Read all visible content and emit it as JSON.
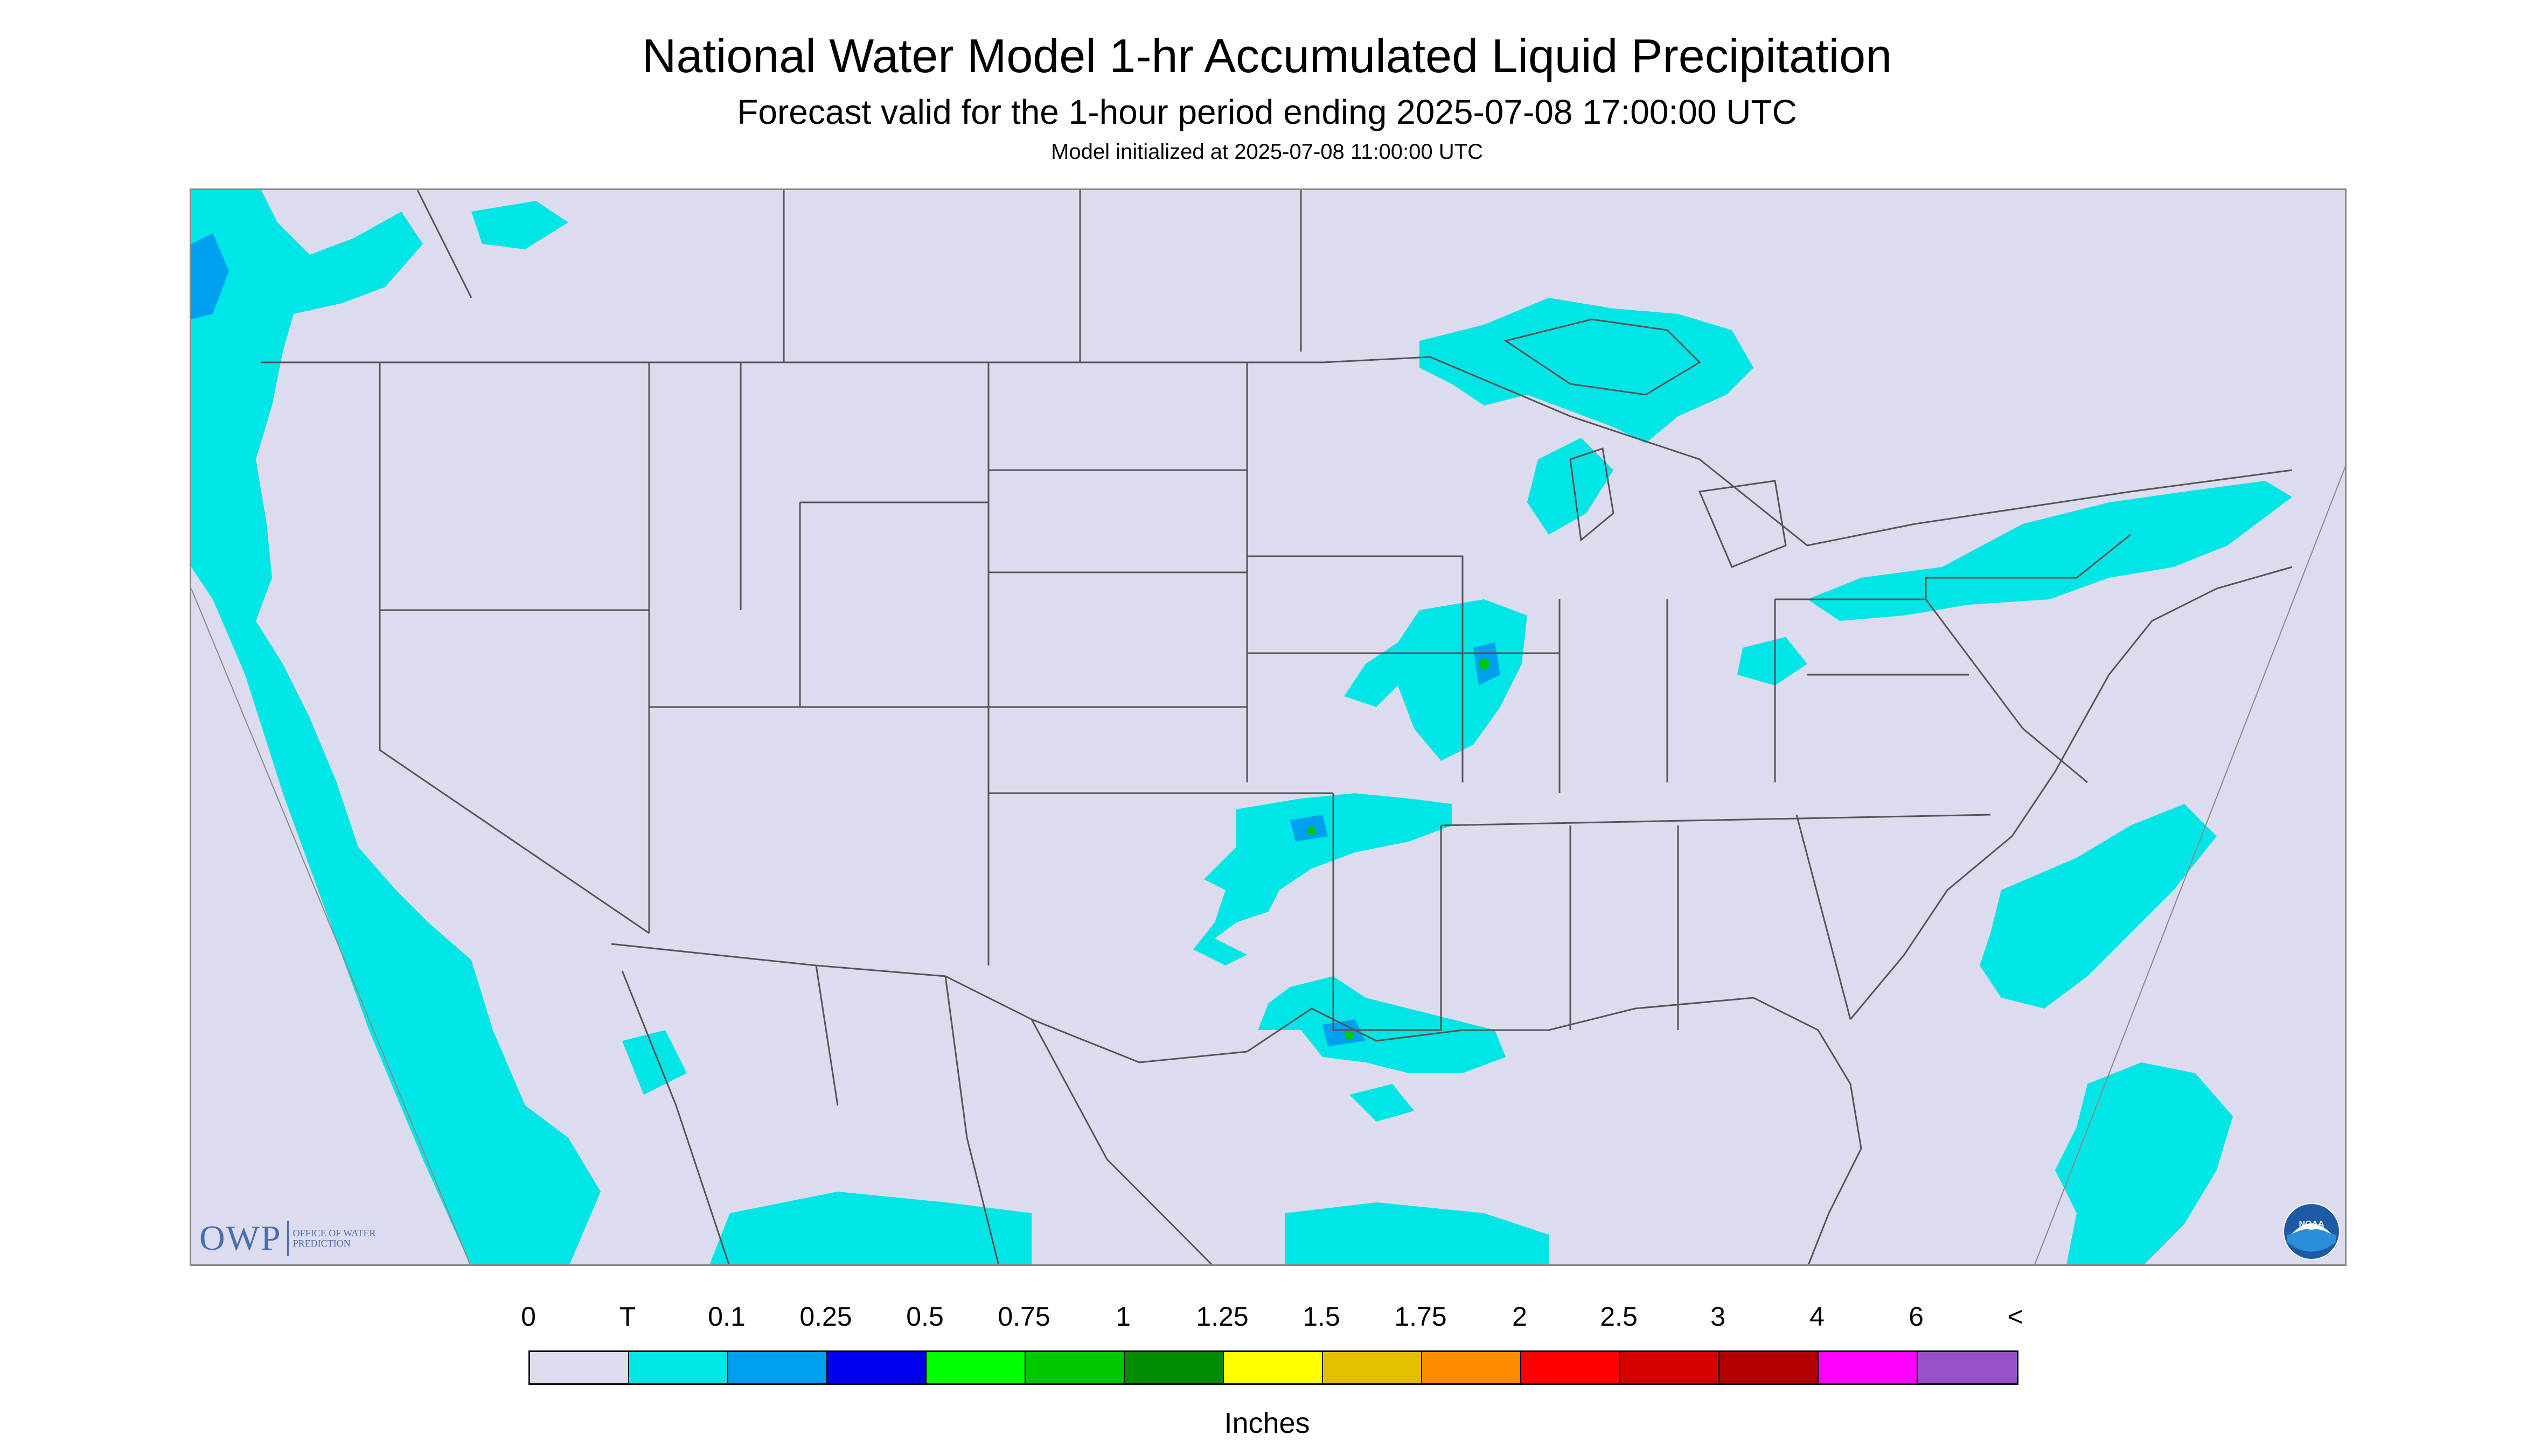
{
  "title": "National Water Model 1-hr Accumulated Liquid Precipitation",
  "subtitle": "Forecast valid for the 1-hour period ending 2025-07-08 17:00:00 UTC",
  "init_line": "Model initialized at 2025-07-08 11:00:00 UTC",
  "map": {
    "background_color": "#dcdcee",
    "border_line_color": "#555555"
  },
  "logos": {
    "owp_mark": "OWP",
    "owp_text": "Office of Water Prediction",
    "noaa_text": "NOAA"
  },
  "legend": {
    "labels": [
      "0",
      "T",
      "0.1",
      "0.25",
      "0.5",
      "0.75",
      "1",
      "1.25",
      "1.5",
      "1.75",
      "2",
      "2.5",
      "3",
      "4",
      "6",
      "<"
    ],
    "colors": [
      "#dcdcee",
      "#00e6e6",
      "#00a0f0",
      "#0000f0",
      "#00ff00",
      "#00c800",
      "#008c00",
      "#ffff00",
      "#e6be00",
      "#ff8c00",
      "#ff0000",
      "#d70000",
      "#b40000",
      "#ff00ff",
      "#9650c8"
    ],
    "units": "Inches"
  }
}
